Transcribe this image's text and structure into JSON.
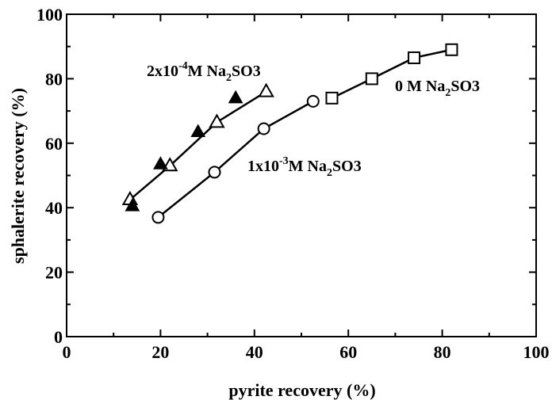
{
  "chart_data": {
    "type": "scatter",
    "xlabel": "pyrite recovery (%)",
    "ylabel": "sphalerite recovery (%)",
    "xlim": [
      0,
      100
    ],
    "ylim": [
      0,
      100
    ],
    "xticks": [
      "0",
      "20",
      "40",
      "60",
      "80",
      "100"
    ],
    "yticks": [
      "0",
      "20",
      "40",
      "60",
      "80",
      "100"
    ],
    "grid": false,
    "series": [
      {
        "marker": "open-square",
        "line": true,
        "x": [
          56.5,
          65,
          74,
          82
        ],
        "y": [
          74,
          80,
          86.5,
          89
        ]
      },
      {
        "marker": "open-circle",
        "line": true,
        "x": [
          19.5,
          31.5,
          42,
          52.5
        ],
        "y": [
          37,
          51,
          64.5,
          73
        ]
      },
      {
        "marker": "open-triangle",
        "line": true,
        "x": [
          13.5,
          22,
          32,
          42.5
        ],
        "y": [
          42.5,
          53,
          66.5,
          76
        ]
      },
      {
        "marker": "filled-triangle",
        "line": false,
        "x": [
          14,
          20,
          28,
          36
        ],
        "y": [
          40.5,
          53.5,
          63.5,
          74
        ]
      }
    ],
    "annotations": [
      {
        "id": "ann-2e-4",
        "pre": "2x10",
        "sup": "-4",
        "mid": "M Na",
        "sub1": "2",
        "mid2": "SO",
        "sub2": "3"
      },
      {
        "id": "ann-0",
        "pre": "0 M Na",
        "sup": "",
        "mid": "",
        "sub1": "2",
        "mid2": "SO",
        "sub2": "3"
      },
      {
        "id": "ann-1e-3",
        "pre": "1x10",
        "sup": "-3",
        "mid": "M Na",
        "sub1": "2",
        "mid2": "SO",
        "sub2": "3"
      }
    ]
  }
}
